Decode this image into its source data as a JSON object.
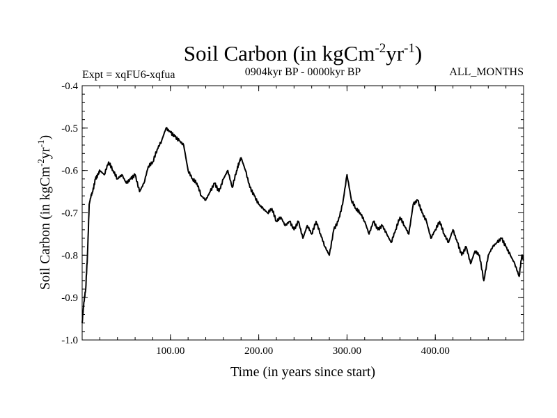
{
  "chart_data": {
    "type": "line",
    "title_main": "Soil Carbon (in kgCm",
    "title_sup1": "-2",
    "title_mid": "yr",
    "title_sup2": "-1",
    "title_close": ")",
    "subtitle_left": "Expt = xqFU6-xqfua",
    "subtitle_center": "0904kyr BP - 0000kyr BP",
    "subtitle_right": "ALL_MONTHS",
    "xlabel": "Time (in years since start)",
    "ylabel_main": "Soil Carbon (in kgCm",
    "ylabel_sup1": "-2",
    "ylabel_mid": "yr",
    "ylabel_sup2": "-1",
    "ylabel_close": ")",
    "xlim": [
      0,
      500
    ],
    "ylim": [
      -1.0,
      -0.4
    ],
    "x_ticks": [
      100,
      200,
      300,
      400
    ],
    "x_tick_labels": [
      "100.00",
      "200.00",
      "300.00",
      "400.00"
    ],
    "y_ticks": [
      -1.0,
      -0.9,
      -0.8,
      -0.7,
      -0.6,
      -0.5,
      -0.4
    ],
    "y_tick_labels": [
      "-1.0",
      "-0.9",
      "-0.8",
      "-0.7",
      "-0.6",
      "-0.5",
      "-0.4"
    ],
    "series": [
      {
        "name": "Soil Carbon",
        "color": "#000000",
        "x": [
          0,
          2,
          4,
          6,
          8,
          10,
          12,
          15,
          18,
          20,
          25,
          30,
          35,
          40,
          45,
          50,
          55,
          60,
          65,
          70,
          75,
          80,
          85,
          90,
          95,
          100,
          105,
          110,
          115,
          120,
          125,
          130,
          135,
          140,
          145,
          150,
          155,
          160,
          165,
          170,
          175,
          178,
          180,
          185,
          190,
          195,
          200,
          205,
          210,
          215,
          220,
          225,
          230,
          235,
          240,
          245,
          250,
          255,
          260,
          265,
          270,
          275,
          280,
          285,
          290,
          295,
          300,
          305,
          310,
          315,
          320,
          325,
          330,
          335,
          340,
          345,
          350,
          355,
          360,
          365,
          370,
          375,
          380,
          385,
          390,
          395,
          400,
          405,
          410,
          415,
          420,
          425,
          430,
          435,
          440,
          445,
          450,
          455,
          460,
          465,
          470,
          475,
          480,
          485,
          490,
          495,
          498,
          500
        ],
        "y": [
          -0.96,
          -0.91,
          -0.88,
          -0.8,
          -0.68,
          -0.66,
          -0.65,
          -0.62,
          -0.61,
          -0.6,
          -0.61,
          -0.58,
          -0.6,
          -0.62,
          -0.61,
          -0.63,
          -0.62,
          -0.61,
          -0.65,
          -0.63,
          -0.59,
          -0.58,
          -0.55,
          -0.53,
          -0.5,
          -0.51,
          -0.52,
          -0.53,
          -0.54,
          -0.6,
          -0.62,
          -0.63,
          -0.66,
          -0.67,
          -0.65,
          -0.63,
          -0.65,
          -0.62,
          -0.6,
          -0.64,
          -0.6,
          -0.58,
          -0.57,
          -0.6,
          -0.64,
          -0.66,
          -0.68,
          -0.69,
          -0.7,
          -0.69,
          -0.72,
          -0.71,
          -0.73,
          -0.72,
          -0.74,
          -0.72,
          -0.76,
          -0.73,
          -0.75,
          -0.72,
          -0.75,
          -0.78,
          -0.8,
          -0.74,
          -0.72,
          -0.68,
          -0.61,
          -0.67,
          -0.69,
          -0.7,
          -0.72,
          -0.75,
          -0.72,
          -0.74,
          -0.73,
          -0.75,
          -0.77,
          -0.74,
          -0.71,
          -0.73,
          -0.75,
          -0.68,
          -0.67,
          -0.7,
          -0.72,
          -0.76,
          -0.74,
          -0.72,
          -0.75,
          -0.77,
          -0.74,
          -0.77,
          -0.8,
          -0.78,
          -0.82,
          -0.79,
          -0.8,
          -0.86,
          -0.8,
          -0.78,
          -0.77,
          -0.76,
          -0.78,
          -0.8,
          -0.82,
          -0.85,
          -0.8,
          -0.81
        ]
      }
    ]
  }
}
